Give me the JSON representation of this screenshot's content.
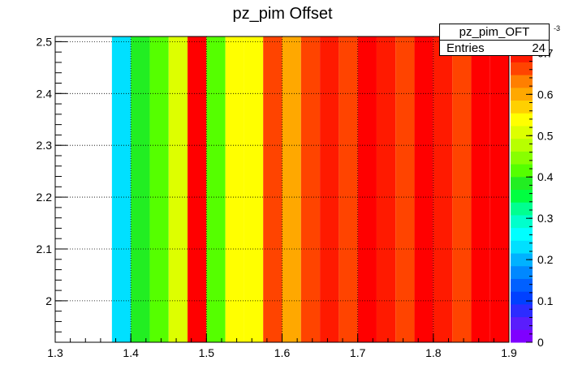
{
  "chart_data": {
    "type": "heatmap",
    "title": "pz_pim Offset",
    "xlim": [
      1.3,
      1.9
    ],
    "ylim": [
      1.92,
      2.51
    ],
    "x_ticks": [
      "1.3",
      "1.4",
      "1.5",
      "1.6",
      "1.7",
      "1.8",
      "1.9"
    ],
    "y_ticks": [
      "2",
      "2.1",
      "2.2",
      "2.3",
      "2.4",
      "2.5"
    ],
    "z_ticks": [
      "0",
      "0.1",
      "0.2",
      "0.3",
      "0.4",
      "0.5",
      "0.6",
      "0.7"
    ],
    "z_exponent_label": "-3",
    "zlim": [
      0,
      0.74
    ],
    "z_scale_factor": "1e-3",
    "grid": true,
    "bin_width": 0.025,
    "cells": [
      {
        "x": 1.3875,
        "z": 0.22
      },
      {
        "x": 1.4125,
        "z": 0.4
      },
      {
        "x": 1.4375,
        "z": 0.43
      },
      {
        "x": 1.4625,
        "z": 0.5
      },
      {
        "x": 1.4875,
        "z": 0.72
      },
      {
        "x": 1.5125,
        "z": 0.43
      },
      {
        "x": 1.5375,
        "z": 0.55
      },
      {
        "x": 1.5625,
        "z": 0.55
      },
      {
        "x": 1.5875,
        "z": 0.65
      },
      {
        "x": 1.6125,
        "z": 0.59
      },
      {
        "x": 1.6375,
        "z": 0.65
      },
      {
        "x": 1.6625,
        "z": 0.69
      },
      {
        "x": 1.6875,
        "z": 0.65
      },
      {
        "x": 1.7125,
        "z": 0.74
      },
      {
        "x": 1.7375,
        "z": 0.69
      },
      {
        "x": 1.7625,
        "z": 0.65
      },
      {
        "x": 1.7875,
        "z": 0.74
      },
      {
        "x": 1.8125,
        "z": 0.69
      },
      {
        "x": 1.8375,
        "z": 0.65
      },
      {
        "x": 1.8625,
        "z": 0.74
      },
      {
        "x": 1.8875,
        "z": 0.74
      }
    ],
    "palette": [
      "#7f00ff",
      "#5a1dfc",
      "#2c2cff",
      "#0040ff",
      "#0060ff",
      "#0088ff",
      "#00b2ff",
      "#00e0ff",
      "#00ffff",
      "#00ffcc",
      "#00ff90",
      "#00ff40",
      "#22ee22",
      "#55ff00",
      "#88ff00",
      "#b8ff00",
      "#ddff00",
      "#ffff00",
      "#ffd000",
      "#ffa800",
      "#ff7f00",
      "#ff4400",
      "#ff1a00",
      "#ff0000"
    ]
  },
  "stats": {
    "name": "pz_pim_OFT",
    "entries_label": "Entries",
    "entries_value": "24"
  }
}
